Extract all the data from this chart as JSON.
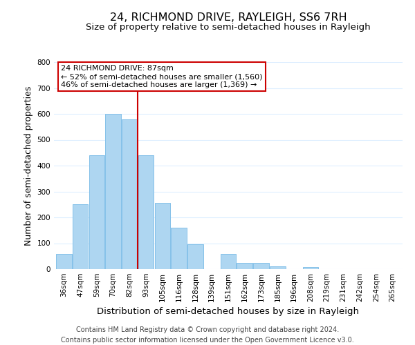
{
  "title": "24, RICHMOND DRIVE, RAYLEIGH, SS6 7RH",
  "subtitle": "Size of property relative to semi-detached houses in Rayleigh",
  "xlabel": "Distribution of semi-detached houses by size in Rayleigh",
  "ylabel": "Number of semi-detached properties",
  "categories": [
    "36sqm",
    "47sqm",
    "59sqm",
    "70sqm",
    "82sqm",
    "93sqm",
    "105sqm",
    "116sqm",
    "128sqm",
    "139sqm",
    "151sqm",
    "162sqm",
    "173sqm",
    "185sqm",
    "196sqm",
    "208sqm",
    "219sqm",
    "231sqm",
    "242sqm",
    "254sqm",
    "265sqm"
  ],
  "values": [
    60,
    250,
    440,
    600,
    580,
    440,
    255,
    160,
    95,
    0,
    60,
    25,
    25,
    10,
    0,
    8,
    0,
    0,
    0,
    0,
    0
  ],
  "bar_color": "#aed6f1",
  "bar_edge_color": "#85c1e9",
  "vline_x_index": 4.5,
  "vline_color": "#cc0000",
  "annotation_line1": "24 RICHMOND DRIVE: 87sqm",
  "annotation_line2": "← 52% of semi-detached houses are smaller (1,560)",
  "annotation_line3": "46% of semi-detached houses are larger (1,369) →",
  "annotation_box_color": "#ffffff",
  "annotation_box_edge_color": "#cc0000",
  "ylim": [
    0,
    800
  ],
  "yticks": [
    0,
    100,
    200,
    300,
    400,
    500,
    600,
    700,
    800
  ],
  "footer_text": "Contains HM Land Registry data © Crown copyright and database right 2024.\nContains public sector information licensed under the Open Government Licence v3.0.",
  "background_color": "#ffffff",
  "grid_color": "#ddeeff",
  "title_fontsize": 11.5,
  "subtitle_fontsize": 9.5,
  "xlabel_fontsize": 9.5,
  "ylabel_fontsize": 9,
  "tick_fontsize": 7.5,
  "annotation_fontsize": 8,
  "footer_fontsize": 7
}
